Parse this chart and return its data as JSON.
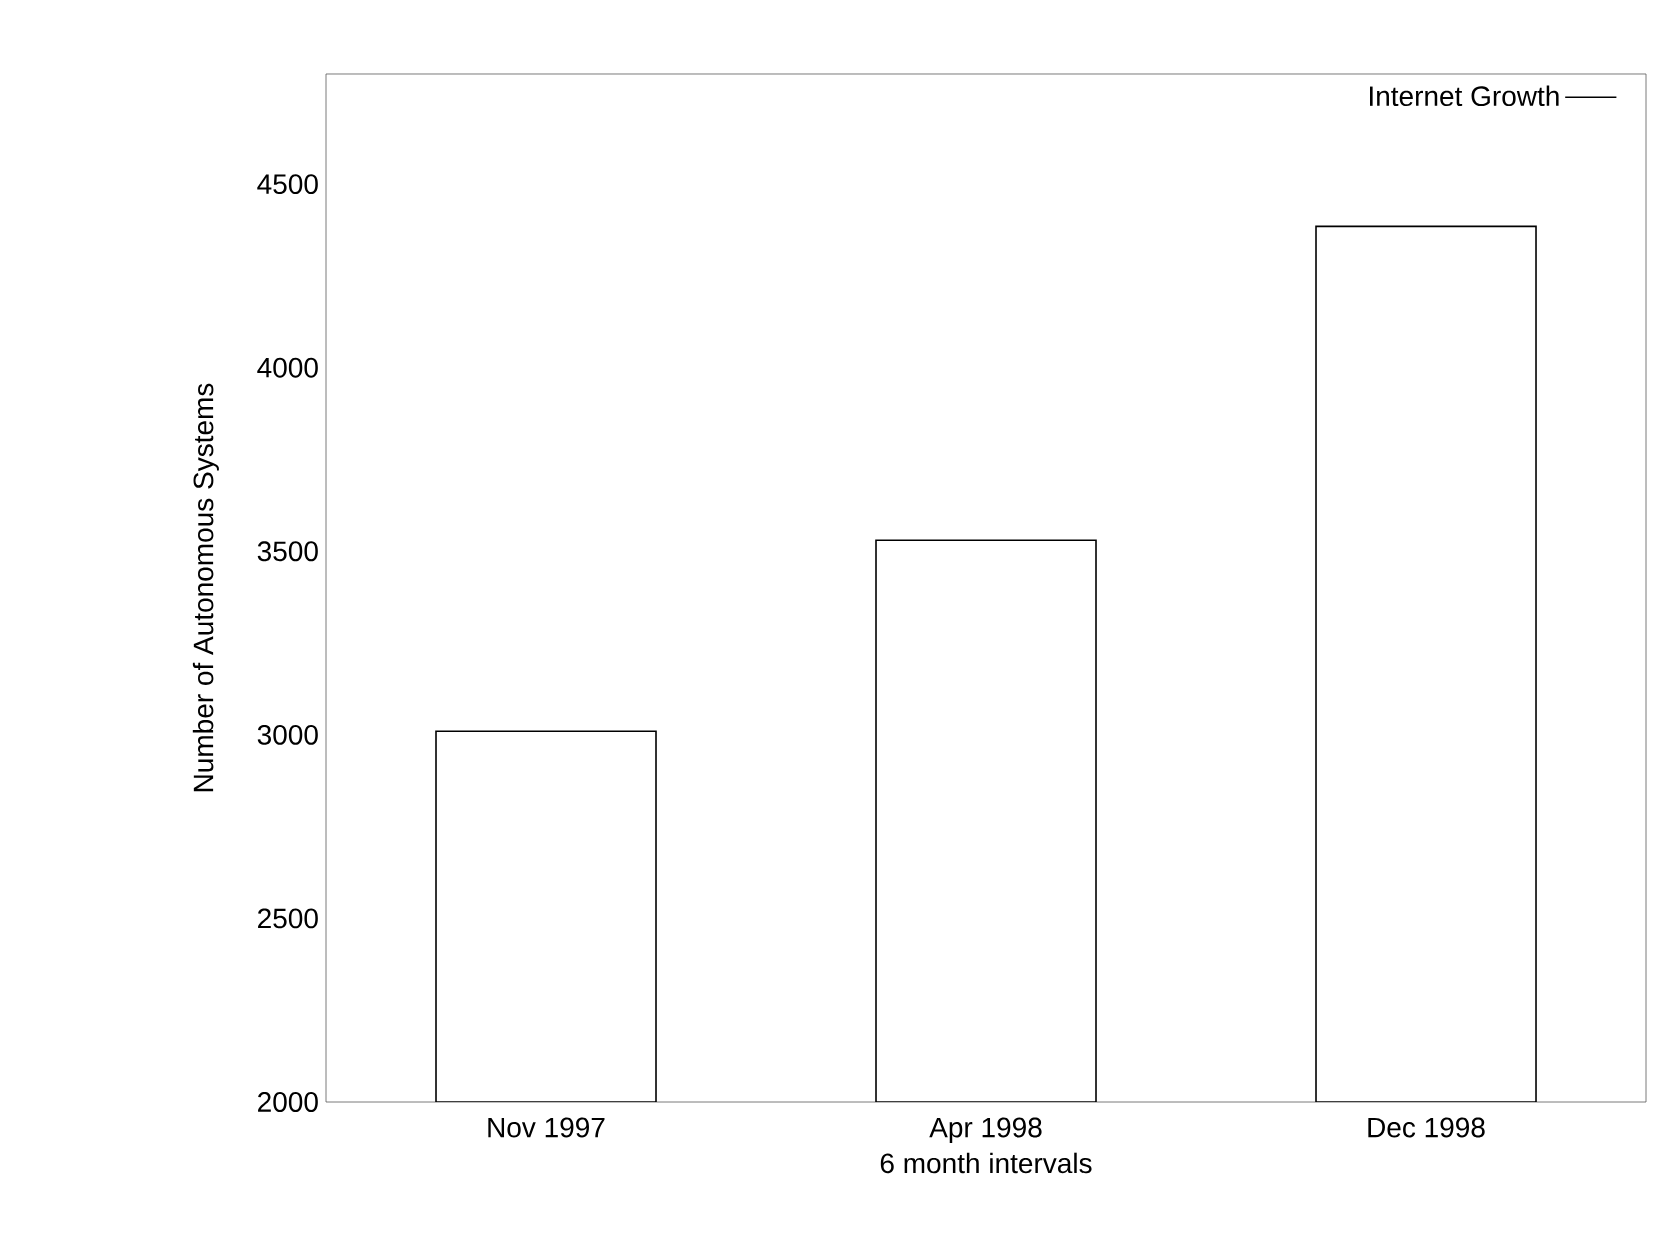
{
  "chart_data": {
    "type": "bar",
    "xlabel": "6 month intervals",
    "ylabel": "Number of Autonomous Systems",
    "categories": [
      "Nov 1997",
      "Apr 1998",
      "Dec 1998"
    ],
    "series": [
      {
        "name": "Internet Growth",
        "color": "#ffffff",
        "values": [
          3010,
          3530,
          4385
        ]
      }
    ],
    "ylim": [
      2000,
      4800
    ],
    "yticks": [
      2000,
      2500,
      3000,
      3500,
      4000,
      4500
    ],
    "grid": false,
    "legend": "top right"
  }
}
